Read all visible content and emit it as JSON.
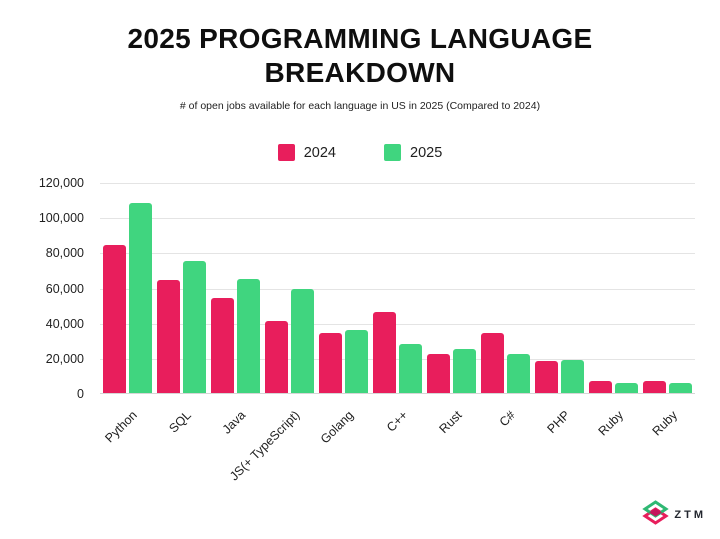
{
  "header": {
    "title": "2025 PROGRAMMING LANGUAGE BREAKDOWN",
    "subtitle": "# of open jobs available for each language in US in 2025 (Compared to 2024)"
  },
  "chart_data": {
    "type": "bar",
    "title": "2025 PROGRAMMING LANGUAGE BREAKDOWN",
    "subtitle": "# of open jobs available for each language in US in 2025 (Compared to 2024)",
    "categories": [
      "Python",
      "SQL",
      "Java",
      "JS(+ TypeScript)",
      "Golang",
      "C++",
      "Rust",
      "C#",
      "PHP",
      "Ruby",
      "Ruby"
    ],
    "series": [
      {
        "name": "2024",
        "color": "#E81E5C",
        "values": [
          84000,
          64000,
          54000,
          41000,
          34000,
          46000,
          22000,
          34000,
          18000,
          7000,
          7000
        ]
      },
      {
        "name": "2025",
        "color": "#40D57F",
        "values": [
          108000,
          75000,
          65000,
          59000,
          36000,
          28000,
          25000,
          22000,
          19000,
          5500,
          5500
        ]
      }
    ],
    "ylim": [
      0,
      120000
    ],
    "ytick_labels": [
      "120,000",
      "100,000",
      "80,000",
      "60,000",
      "40,000",
      "20,000",
      "0"
    ],
    "grid": true,
    "legend_position": "top-center",
    "xlabel": "",
    "ylabel": ""
  },
  "footer": {
    "logo_text": "ZTM"
  },
  "colors": {
    "background": "#FFFFFF",
    "grid": "#E4E4E4",
    "baseline": "#D6D6D6",
    "axis_text": "#1F1F1F",
    "title_text": "#0F0F0F"
  }
}
